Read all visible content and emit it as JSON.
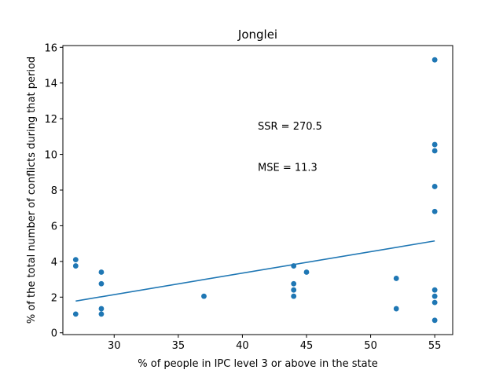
{
  "chart_data": {
    "type": "scatter",
    "title": "Jonglei",
    "xlabel": "% of people in IPC level 3 or above in the state",
    "ylabel": "% of the total number of conflicts during that period",
    "xlim": [
      26.0,
      56.4
    ],
    "ylim": [
      -0.1,
      16.1
    ],
    "xticks": [
      30,
      35,
      40,
      45,
      50,
      55
    ],
    "yticks": [
      0,
      2,
      4,
      6,
      8,
      10,
      12,
      14,
      16
    ],
    "grid": false,
    "colors": {
      "points": "#1f77b4",
      "fit_line": "#1f77b4"
    },
    "points": [
      {
        "x": 27,
        "y": 4.1
      },
      {
        "x": 27,
        "y": 3.75
      },
      {
        "x": 27,
        "y": 1.05
      },
      {
        "x": 29,
        "y": 3.4
      },
      {
        "x": 29,
        "y": 2.75
      },
      {
        "x": 29,
        "y": 1.35
      },
      {
        "x": 29,
        "y": 1.05
      },
      {
        "x": 37,
        "y": 2.05
      },
      {
        "x": 44,
        "y": 3.75
      },
      {
        "x": 44,
        "y": 2.75
      },
      {
        "x": 44,
        "y": 2.4
      },
      {
        "x": 44,
        "y": 2.05
      },
      {
        "x": 45,
        "y": 3.4
      },
      {
        "x": 52,
        "y": 3.05
      },
      {
        "x": 52,
        "y": 1.35
      },
      {
        "x": 55,
        "y": 15.3
      },
      {
        "x": 55,
        "y": 10.55
      },
      {
        "x": 55,
        "y": 10.2
      },
      {
        "x": 55,
        "y": 8.2
      },
      {
        "x": 55,
        "y": 6.8
      },
      {
        "x": 55,
        "y": 2.4
      },
      {
        "x": 55,
        "y": 2.05
      },
      {
        "x": 55,
        "y": 1.7
      },
      {
        "x": 55,
        "y": 0.7
      }
    ],
    "fit_line": {
      "x": [
        27,
        55
      ],
      "y": [
        1.78,
        5.15
      ]
    },
    "annotations": [
      {
        "text": "SSR = 270.5",
        "x": 41.2,
        "y": 11.6
      },
      {
        "text": "MSE = 11.3",
        "x": 41.2,
        "y": 9.3
      }
    ]
  }
}
